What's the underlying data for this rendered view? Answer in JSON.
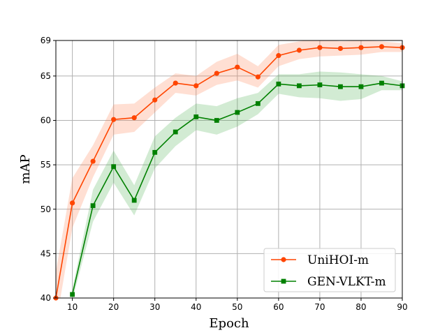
{
  "chart_data": {
    "type": "line",
    "xlabel": "Epoch",
    "ylabel": "mAP",
    "xlim": [
      6,
      90
    ],
    "ylim": [
      40,
      69
    ],
    "xticks": [
      10,
      20,
      30,
      40,
      50,
      60,
      70,
      80,
      90
    ],
    "yticks": [
      40,
      45,
      50,
      55,
      60,
      65,
      69
    ],
    "grid": true,
    "legend_position": "lower-right",
    "series": [
      {
        "name": "UniHOI-m",
        "color": "#ff4500",
        "band_color": "#ff7f50",
        "marker": "circle",
        "x": [
          6,
          10,
          15,
          20,
          25,
          30,
          35,
          40,
          45,
          50,
          55,
          60,
          65,
          70,
          75,
          80,
          85,
          90
        ],
        "y": [
          40.0,
          50.7,
          55.4,
          60.1,
          60.3,
          62.3,
          64.2,
          63.9,
          65.3,
          66.0,
          64.9,
          67.3,
          67.9,
          68.2,
          68.1,
          68.2,
          68.3,
          68.2
        ],
        "band": [
          3.0,
          2.8,
          1.8,
          1.7,
          1.6,
          1.4,
          1.1,
          1.1,
          1.3,
          1.5,
          1.2,
          1.2,
          1.0,
          1.0,
          0.8,
          0.8,
          0.6,
          0.5
        ]
      },
      {
        "name": "GEN-VLKT-m",
        "color": "#008000",
        "band_color": "#4caf50",
        "marker": "square",
        "x": [
          10,
          15,
          20,
          25,
          30,
          35,
          40,
          45,
          50,
          55,
          60,
          65,
          70,
          75,
          80,
          85,
          90
        ],
        "y": [
          40.4,
          50.4,
          54.8,
          51.0,
          56.4,
          58.7,
          60.4,
          60.0,
          60.9,
          61.9,
          64.1,
          63.9,
          64.0,
          63.8,
          63.8,
          64.2,
          63.9
        ],
        "band": [
          0.6,
          1.8,
          1.8,
          1.7,
          1.8,
          1.6,
          1.5,
          1.6,
          1.6,
          1.2,
          1.1,
          1.3,
          1.5,
          1.6,
          1.4,
          0.8,
          0.5
        ]
      }
    ]
  }
}
